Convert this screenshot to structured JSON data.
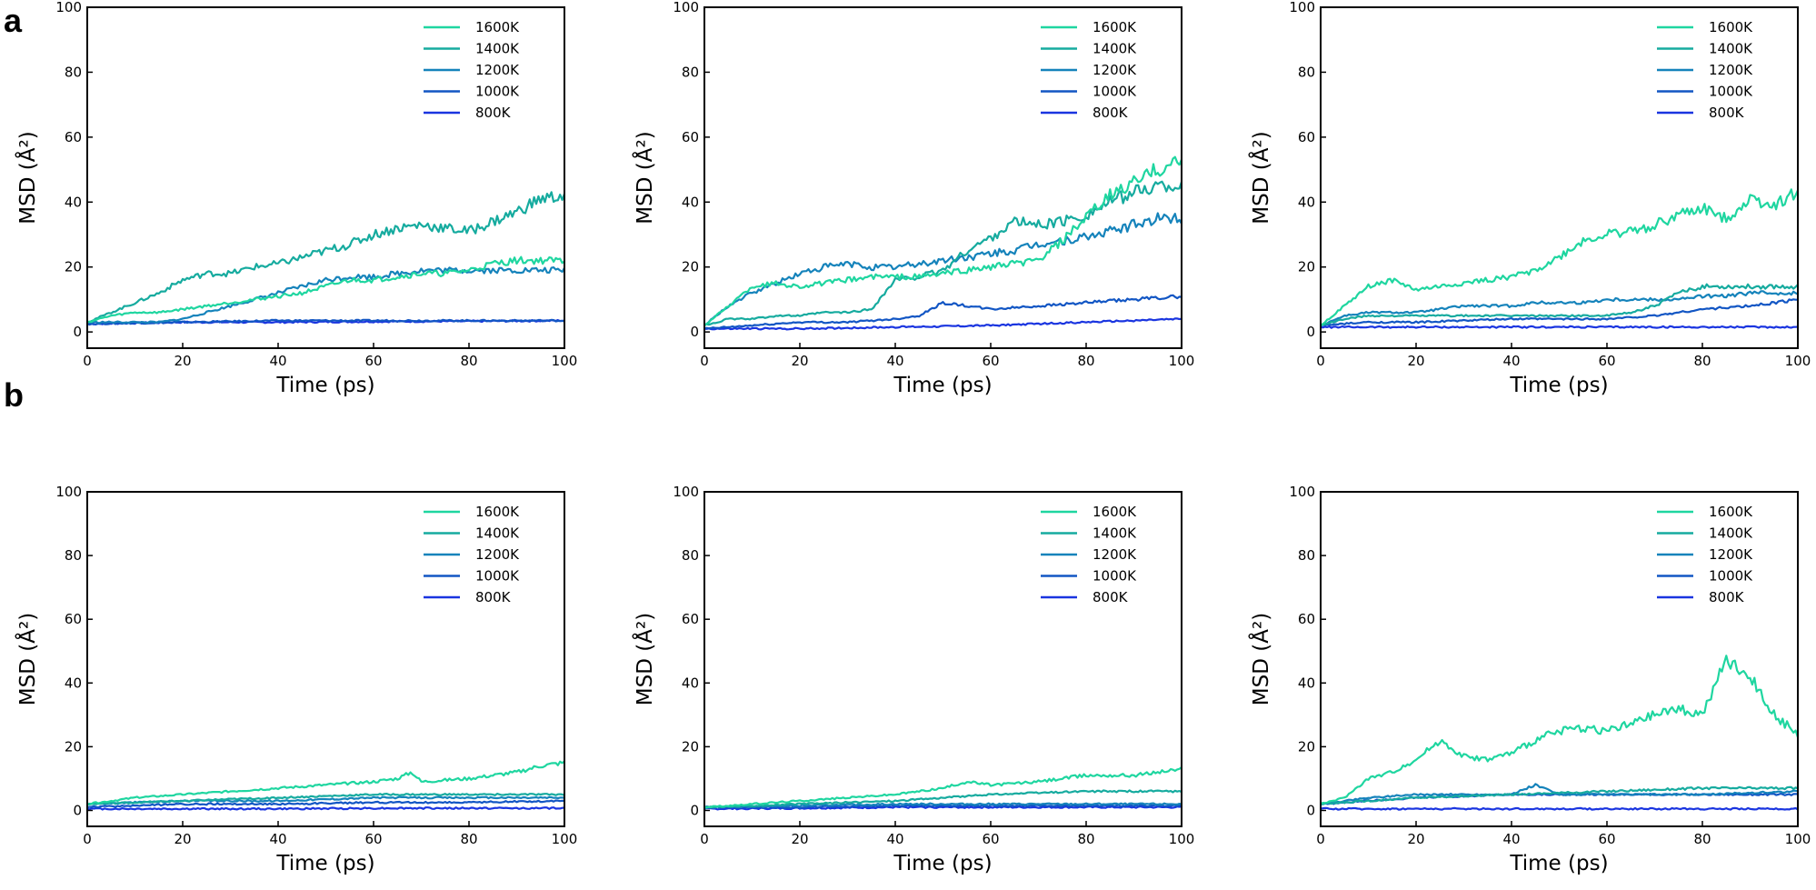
{
  "figure": {
    "panel_labels": [
      "a",
      "b"
    ]
  },
  "legend": [
    "1600K",
    "1400K",
    "1200K",
    "1000K",
    "800K"
  ],
  "series_colors": {
    "1600K": "#1fd6a0",
    "1400K": "#16ab9f",
    "1200K": "#1583bb",
    "1000K": "#1256c4",
    "800K": "#1a35e0"
  },
  "chart_data": [
    {
      "type": "line",
      "id": "a1",
      "row": "a",
      "xlabel": "Time (ps)",
      "ylabel": "MSD (Å²)",
      "xlim": [
        0,
        100
      ],
      "ylim": [
        -5,
        100
      ],
      "xticks": [
        0,
        20,
        40,
        60,
        80,
        100
      ],
      "yticks": [
        0,
        20,
        40,
        60,
        80,
        100
      ],
      "legend_position": "top-right",
      "series": [
        {
          "name": "1600K",
          "x": [
            0,
            5,
            10,
            15,
            20,
            25,
            30,
            35,
            40,
            45,
            50,
            55,
            60,
            65,
            70,
            75,
            80,
            85,
            90,
            95,
            100
          ],
          "values": [
            3,
            5,
            6,
            6,
            7,
            8,
            9,
            10,
            11,
            12,
            14,
            16,
            16,
            17,
            18,
            18,
            19,
            21,
            22,
            22,
            22
          ]
        },
        {
          "name": "1400K",
          "x": [
            0,
            5,
            10,
            15,
            20,
            25,
            30,
            35,
            40,
            45,
            50,
            55,
            60,
            65,
            70,
            75,
            80,
            85,
            90,
            95,
            100
          ],
          "values": [
            3,
            6,
            9,
            12,
            16,
            18,
            18,
            20,
            21,
            23,
            25,
            27,
            30,
            32,
            33,
            32,
            31,
            34,
            37,
            41,
            42
          ]
        },
        {
          "name": "1200K",
          "x": [
            0,
            5,
            10,
            15,
            20,
            25,
            30,
            35,
            40,
            45,
            50,
            55,
            60,
            65,
            70,
            75,
            80,
            85,
            90,
            95,
            100
          ],
          "values": [
            3,
            3,
            3,
            3,
            4,
            6,
            8,
            10,
            12,
            14,
            16,
            17,
            17,
            18,
            19,
            19,
            19,
            19,
            19,
            19,
            19
          ]
        },
        {
          "name": "1000K",
          "x": [
            0,
            20,
            40,
            60,
            80,
            100
          ],
          "values": [
            2.5,
            3,
            3.5,
            3.5,
            3.5,
            3.5
          ]
        },
        {
          "name": "800K",
          "x": [
            0,
            20,
            40,
            60,
            80,
            100
          ],
          "values": [
            2.5,
            3,
            3,
            3.2,
            3.3,
            3.5
          ]
        }
      ]
    },
    {
      "type": "line",
      "id": "a2",
      "row": "a",
      "xlabel": "Time (ps)",
      "ylabel": "MSD (Å²)",
      "xlim": [
        0,
        100
      ],
      "ylim": [
        -5,
        100
      ],
      "xticks": [
        0,
        20,
        40,
        60,
        80,
        100
      ],
      "yticks": [
        0,
        20,
        40,
        60,
        80,
        100
      ],
      "legend_position": "top-right",
      "series": [
        {
          "name": "1600K",
          "x": [
            0,
            5,
            10,
            15,
            20,
            25,
            30,
            35,
            40,
            45,
            50,
            55,
            60,
            65,
            70,
            75,
            80,
            85,
            90,
            95,
            100
          ],
          "values": [
            2,
            8,
            14,
            15,
            14,
            15,
            16,
            17,
            17,
            17,
            18,
            19,
            20,
            21,
            22,
            28,
            35,
            42,
            46,
            50,
            53
          ]
        },
        {
          "name": "1400K",
          "x": [
            0,
            5,
            10,
            15,
            20,
            25,
            30,
            35,
            40,
            45,
            50,
            55,
            60,
            65,
            70,
            75,
            80,
            85,
            90,
            95,
            100
          ],
          "values": [
            2,
            4,
            4,
            5,
            5,
            6,
            6,
            7,
            16,
            17,
            19,
            25,
            29,
            34,
            33,
            34,
            36,
            40,
            43,
            45,
            45
          ]
        },
        {
          "name": "1200K",
          "x": [
            0,
            5,
            10,
            15,
            20,
            25,
            30,
            35,
            40,
            45,
            50,
            55,
            60,
            65,
            70,
            75,
            80,
            85,
            90,
            95,
            100
          ],
          "values": [
            2,
            8,
            12,
            15,
            18,
            20,
            21,
            20,
            20,
            21,
            22,
            23,
            24,
            25,
            27,
            28,
            29,
            31,
            33,
            35,
            35
          ]
        },
        {
          "name": "1000K",
          "x": [
            0,
            10,
            20,
            30,
            40,
            45,
            50,
            55,
            60,
            70,
            80,
            90,
            100
          ],
          "values": [
            1,
            2,
            3,
            3,
            4,
            5,
            9,
            8,
            7,
            8,
            9,
            10,
            11
          ]
        },
        {
          "name": "800K",
          "x": [
            0,
            20,
            40,
            60,
            80,
            100
          ],
          "values": [
            1,
            1,
            1.5,
            2,
            3,
            4
          ]
        }
      ]
    },
    {
      "type": "line",
      "id": "a3",
      "row": "a",
      "xlabel": "Time (ps)",
      "ylabel": "MSD (Å²)",
      "xlim": [
        0,
        100
      ],
      "ylim": [
        -5,
        100
      ],
      "xticks": [
        0,
        20,
        40,
        60,
        80,
        100
      ],
      "yticks": [
        0,
        20,
        40,
        60,
        80,
        100
      ],
      "legend_position": "top-right",
      "series": [
        {
          "name": "1600K",
          "x": [
            0,
            5,
            10,
            15,
            20,
            25,
            30,
            35,
            40,
            45,
            50,
            55,
            60,
            65,
            70,
            75,
            80,
            85,
            90,
            95,
            100
          ],
          "values": [
            2,
            8,
            14,
            16,
            13,
            14,
            15,
            16,
            17,
            19,
            23,
            28,
            30,
            31,
            33,
            36,
            38,
            35,
            41,
            39,
            43
          ]
        },
        {
          "name": "1400K",
          "x": [
            0,
            5,
            10,
            15,
            20,
            25,
            30,
            35,
            40,
            45,
            50,
            55,
            60,
            65,
            70,
            75,
            80,
            85,
            90,
            95,
            100
          ],
          "values": [
            2,
            4,
            5,
            5,
            5,
            5,
            5,
            5,
            5,
            5,
            5,
            5,
            5,
            6,
            8,
            12,
            14,
            14,
            14,
            14,
            14
          ]
        },
        {
          "name": "1200K",
          "x": [
            0,
            5,
            10,
            15,
            20,
            25,
            30,
            35,
            40,
            45,
            50,
            55,
            60,
            65,
            70,
            75,
            80,
            85,
            90,
            95,
            100
          ],
          "values": [
            2,
            5,
            6,
            6,
            6,
            7,
            8,
            8,
            8,
            9,
            9,
            9,
            10,
            10,
            10,
            10,
            11,
            11,
            12,
            12,
            12
          ]
        },
        {
          "name": "1000K",
          "x": [
            0,
            10,
            20,
            40,
            60,
            70,
            80,
            90,
            100
          ],
          "values": [
            2,
            3,
            3,
            4,
            4,
            5,
            7,
            8,
            10
          ]
        },
        {
          "name": "800K",
          "x": [
            0,
            20,
            40,
            60,
            80,
            100
          ],
          "values": [
            1.5,
            1.5,
            1.5,
            1.5,
            1.5,
            1.5
          ]
        }
      ]
    },
    {
      "type": "line",
      "id": "b1",
      "row": "b",
      "xlabel": "Time (ps)",
      "ylabel": "MSD (Å²)",
      "xlim": [
        0,
        100
      ],
      "ylim": [
        -5,
        100
      ],
      "xticks": [
        0,
        20,
        40,
        60,
        80,
        100
      ],
      "yticks": [
        0,
        20,
        40,
        60,
        80,
        100
      ],
      "legend_position": "top-right",
      "series": [
        {
          "name": "1600K",
          "x": [
            0,
            10,
            20,
            30,
            40,
            50,
            60,
            65,
            68,
            70,
            80,
            90,
            95,
            100
          ],
          "values": [
            2,
            4,
            5,
            6,
            7,
            8,
            9,
            10,
            12,
            9,
            10,
            12,
            14,
            15
          ]
        },
        {
          "name": "1400K",
          "x": [
            0,
            20,
            40,
            60,
            80,
            100
          ],
          "values": [
            2,
            3,
            4,
            5,
            5,
            5
          ]
        },
        {
          "name": "1200K",
          "x": [
            0,
            20,
            40,
            60,
            80,
            100
          ],
          "values": [
            2,
            3,
            3,
            4,
            4,
            4
          ]
        },
        {
          "name": "1000K",
          "x": [
            0,
            20,
            40,
            60,
            80,
            100
          ],
          "values": [
            1,
            2,
            2,
            2.5,
            2.5,
            3
          ]
        },
        {
          "name": "800K",
          "x": [
            0,
            20,
            40,
            60,
            80,
            100
          ],
          "values": [
            0.5,
            0.5,
            0.5,
            0.7,
            0.7,
            0.7
          ]
        }
      ]
    },
    {
      "type": "line",
      "id": "b2",
      "row": "b",
      "xlabel": "Time (ps)",
      "ylabel": "MSD (Å²)",
      "xlim": [
        0,
        100
      ],
      "ylim": [
        -5,
        100
      ],
      "xticks": [
        0,
        20,
        40,
        60,
        80,
        100
      ],
      "yticks": [
        0,
        20,
        40,
        60,
        80,
        100
      ],
      "legend_position": "top-right",
      "series": [
        {
          "name": "1600K",
          "x": [
            0,
            10,
            20,
            30,
            40,
            50,
            55,
            60,
            70,
            80,
            90,
            100
          ],
          "values": [
            1,
            2,
            3,
            4,
            5,
            7,
            9,
            8,
            9,
            11,
            11,
            13
          ]
        },
        {
          "name": "1400K",
          "x": [
            0,
            20,
            40,
            60,
            80,
            100
          ],
          "values": [
            1,
            2,
            3,
            5,
            6,
            6
          ]
        },
        {
          "name": "1200K",
          "x": [
            0,
            20,
            40,
            60,
            80,
            100
          ],
          "values": [
            1,
            1.5,
            2,
            2,
            2,
            2
          ]
        },
        {
          "name": "1000K",
          "x": [
            0,
            20,
            40,
            60,
            80,
            100
          ],
          "values": [
            1,
            1,
            1.5,
            1.5,
            1.5,
            1.5
          ]
        },
        {
          "name": "800K",
          "x": [
            0,
            20,
            40,
            60,
            80,
            100
          ],
          "values": [
            0.5,
            0.7,
            1,
            1,
            1,
            1
          ]
        }
      ]
    },
    {
      "type": "line",
      "id": "b3",
      "row": "b",
      "xlabel": "Time (ps)",
      "ylabel": "MSD (Å²)",
      "xlim": [
        0,
        100
      ],
      "ylim": [
        -5,
        100
      ],
      "xticks": [
        0,
        20,
        40,
        60,
        80,
        100
      ],
      "yticks": [
        0,
        20,
        40,
        60,
        80,
        100
      ],
      "legend_position": "top-right",
      "series": [
        {
          "name": "1600K",
          "x": [
            0,
            5,
            10,
            15,
            20,
            25,
            30,
            35,
            40,
            45,
            50,
            55,
            60,
            65,
            70,
            75,
            80,
            85,
            88,
            90,
            95,
            100
          ],
          "values": [
            2,
            4,
            10,
            12,
            16,
            22,
            17,
            16,
            18,
            22,
            25,
            26,
            25,
            27,
            30,
            32,
            30,
            47,
            44,
            42,
            30,
            24
          ]
        },
        {
          "name": "1400K",
          "x": [
            0,
            20,
            40,
            60,
            80,
            100
          ],
          "values": [
            2,
            4,
            5,
            6,
            7,
            7
          ]
        },
        {
          "name": "1200K",
          "x": [
            0,
            10,
            20,
            40,
            45,
            50,
            60,
            80,
            100
          ],
          "values": [
            2,
            4,
            5,
            5,
            8,
            5,
            5,
            5,
            6
          ]
        },
        {
          "name": "1000K",
          "x": [
            0,
            20,
            40,
            60,
            80,
            100
          ],
          "values": [
            2,
            4,
            5,
            5,
            5,
            5
          ]
        },
        {
          "name": "800K",
          "x": [
            0,
            20,
            40,
            60,
            80,
            100
          ],
          "values": [
            0.5,
            0.5,
            0.5,
            0.5,
            0.5,
            0.5
          ]
        }
      ]
    }
  ]
}
